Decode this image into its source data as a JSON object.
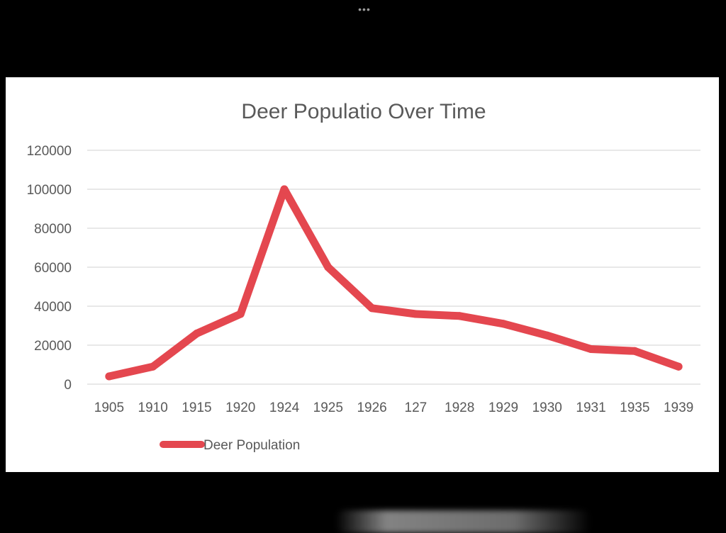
{
  "window": {
    "dots_label": "•••"
  },
  "chart_data": {
    "type": "line",
    "title": "Deer Populatio Over Time",
    "xlabel": "",
    "ylabel": "",
    "categories": [
      "1905",
      "1910",
      "1915",
      "1920",
      "1924",
      "1925",
      "1926",
      "127",
      "1928",
      "1929",
      "1930",
      "1931",
      "1935",
      "1939"
    ],
    "series": [
      {
        "name": "Deer Population",
        "color": "#e4474f",
        "values": [
          4000,
          9000,
          26000,
          36000,
          100000,
          60000,
          39000,
          36000,
          35000,
          31000,
          25000,
          18000,
          17000,
          9000
        ]
      }
    ],
    "ylim": [
      0,
      120000
    ],
    "yticks": [
      "0",
      "20000",
      "40000",
      "60000",
      "80000",
      "100000",
      "120000"
    ],
    "ytick_values": [
      0,
      20000,
      40000,
      60000,
      80000,
      100000,
      120000
    ],
    "grid": true,
    "legend_position": "bottom-left"
  },
  "colors": {
    "background": "#000000",
    "card": "#ffffff",
    "grid": "#d9d9d9",
    "text": "#595959",
    "title_text": "#595959",
    "line": "#e4474f"
  }
}
